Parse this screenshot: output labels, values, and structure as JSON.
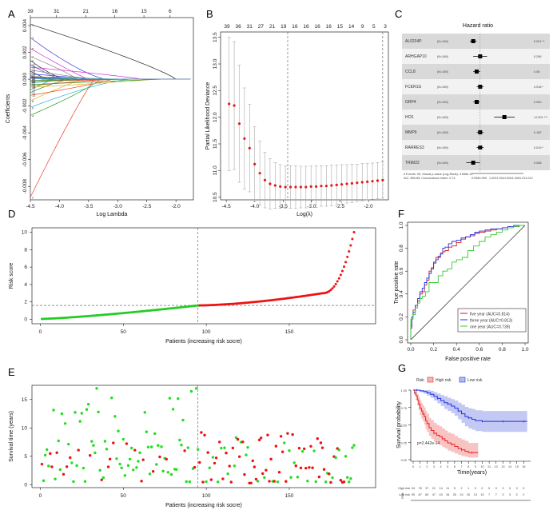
{
  "panel_letters": [
    "A",
    "B",
    "C",
    "D",
    "E",
    "F",
    "G"
  ],
  "chart_data": [
    {
      "panel": "A",
      "type": "line",
      "title": "",
      "xlabel": "Log Lambda",
      "ylabel": "Coefficients",
      "xlim": [
        -4.5,
        -1.7
      ],
      "ylim": [
        -0.009,
        0.0046
      ],
      "x_ticks": [
        "-4.5",
        "-4.0",
        "-3.5",
        "-3.0",
        "-2.5",
        "-2.0"
      ],
      "y_ticks": [
        "-0.008",
        "-0.006",
        "-0.004",
        "-0.002",
        "0.000",
        "0.002",
        "0.004"
      ],
      "top_ticks": [
        "39",
        "31",
        "21",
        "16",
        "15",
        "6"
      ],
      "series_colors": [
        "#222222",
        "#e8402a",
        "#3a3ad8",
        "#2aa02a",
        "#d42ad4",
        "#23b4c8",
        "#888888",
        "#e0b020"
      ]
    },
    {
      "panel": "B",
      "type": "scatter",
      "xlabel": "Log(λ)",
      "ylabel": "Partial Likelihood Deviance",
      "xlim": [
        -4.6,
        -1.65
      ],
      "ylim": [
        10.45,
        13.6
      ],
      "x_ticks": [
        "-4.5",
        "-4.0",
        "-3.5",
        "-3.0",
        "-2.5",
        "-2.0"
      ],
      "y_ticks": [
        "10.5",
        "11.0",
        "11.5",
        "12.0",
        "12.5",
        "13.0",
        "13.5"
      ],
      "top_ticks": [
        "39",
        "36",
        "31",
        "27",
        "21",
        "19",
        "16",
        "16",
        "16",
        "16",
        "15",
        "14",
        "9",
        "5",
        "3"
      ],
      "vlines": [
        -3.42,
        -1.75
      ],
      "points": [
        [
          -4.45,
          12.25,
          1.25
        ],
        [
          -4.36,
          12.22,
          1.2
        ],
        [
          -4.27,
          11.88,
          1.1
        ],
        [
          -4.18,
          11.6,
          0.95
        ],
        [
          -4.09,
          11.42,
          0.82
        ],
        [
          -4.0,
          11.12,
          0.7
        ],
        [
          -3.91,
          10.95,
          0.6
        ],
        [
          -3.82,
          10.82,
          0.52
        ],
        [
          -3.73,
          10.75,
          0.47
        ],
        [
          -3.64,
          10.72,
          0.43
        ],
        [
          -3.55,
          10.7,
          0.41
        ],
        [
          -3.46,
          10.69,
          0.4
        ],
        [
          -3.37,
          10.69,
          0.4
        ],
        [
          -3.28,
          10.69,
          0.4
        ],
        [
          -3.19,
          10.69,
          0.39
        ],
        [
          -3.1,
          10.69,
          0.39
        ],
        [
          -3.01,
          10.7,
          0.39
        ],
        [
          -2.92,
          10.7,
          0.39
        ],
        [
          -2.83,
          10.71,
          0.38
        ],
        [
          -2.74,
          10.71,
          0.38
        ],
        [
          -2.65,
          10.72,
          0.38
        ],
        [
          -2.56,
          10.73,
          0.37
        ],
        [
          -2.47,
          10.74,
          0.37
        ],
        [
          -2.38,
          10.75,
          0.36
        ],
        [
          -2.29,
          10.76,
          0.36
        ],
        [
          -2.2,
          10.77,
          0.35
        ],
        [
          -2.11,
          10.78,
          0.35
        ],
        [
          -2.02,
          10.79,
          0.34
        ],
        [
          -1.93,
          10.8,
          0.34
        ],
        [
          -1.84,
          10.81,
          0.34
        ],
        [
          -1.75,
          10.82,
          0.34
        ]
      ]
    },
    {
      "panel": "C",
      "type": "table",
      "title": "Hazard ratio",
      "genes": [
        {
          "name": "AL0234P",
          "n": "(N=189)",
          "hr": 0.998,
          "lo": 0.997,
          "hi": 0.999,
          "p": "0.001 **"
        },
        {
          "name": "ARHGAP10",
          "n": "(N=189)",
          "hr": 1.0,
          "lo": 0.998,
          "hi": 1.002,
          "p": "0.296"
        },
        {
          "name": "CCL8",
          "n": "(N=189)",
          "hr": 0.999,
          "lo": 0.998,
          "hi": 1.0,
          "p": "0.08"
        },
        {
          "name": "FCER1G",
          "n": "(N=189)",
          "hr": 1.0,
          "lo": 0.999,
          "hi": 1.001,
          "p": "0.018 *"
        },
        {
          "name": "GRP4",
          "n": "(N=189)",
          "hr": 0.999,
          "lo": 0.998,
          "hi": 1.0,
          "p": "0.052 ."
        },
        {
          "name": "HCK",
          "n": "(N=189)",
          "hr": 1.007,
          "lo": 1.004,
          "hi": 1.01,
          "p": "<0.001 ***"
        },
        {
          "name": "MMP9",
          "n": "(N=189)",
          "hr": 1.0,
          "lo": 0.999,
          "hi": 1.001,
          "p": "0.182"
        },
        {
          "name": "RARRES3",
          "n": "(N=189)",
          "hr": 1.0,
          "lo": 0.999,
          "hi": 1.001,
          "p": "0.019 *"
        },
        {
          "name": "TRIM22",
          "n": "(N=189)",
          "hr": 0.998,
          "lo": 0.996,
          "hi": 1.0,
          "p": "0.088"
        }
      ],
      "footer_line1": "# Events: 99; Global p-value (Log-Rank): 4.658e-11",
      "footer_line2": "AIC: 896.65; Concordance Index: 0.74",
      "axis_ticks": [
        "0.9980.999",
        "1.0021.0041.0061.0081.011.012"
      ],
      "xlim": [
        0.9975,
        1.0125
      ],
      "hr_ref": 1.0
    },
    {
      "panel": "D",
      "type": "scatter",
      "xlabel": "Patients (increasing risk socre)",
      "ylabel": "Risk score",
      "xlim": [
        -5,
        202
      ],
      "ylim": [
        -0.5,
        10.5
      ],
      "x_ticks": [
        "0",
        "50",
        "100",
        "150"
      ],
      "y_ticks": [
        "0",
        "2",
        "4",
        "6",
        "8",
        "10"
      ],
      "cutoff_index": 95,
      "cutoff_value": 1.6,
      "n_patients": 189,
      "low_color": "#22cc22",
      "high_color": "#ee1111"
    },
    {
      "panel": "E",
      "type": "scatter",
      "xlabel": "Patients (increasing risk socre)",
      "ylabel": "Survival time (years)",
      "xlim": [
        -5,
        202
      ],
      "ylim": [
        -0.5,
        17.5
      ],
      "x_ticks": [
        "0",
        "50",
        "100",
        "150"
      ],
      "y_ticks": [
        "0",
        "5",
        "10",
        "15"
      ],
      "cutoff_index": 95,
      "legend_note": "green = alive, red = dead"
    },
    {
      "panel": "F",
      "type": "line",
      "xlabel": "False positive rate",
      "ylabel": "True positive rate",
      "xlim": [
        0,
        1
      ],
      "ylim": [
        0,
        1
      ],
      "x_ticks": [
        "0.0",
        "0.2",
        "0.4",
        "0.6",
        "0.8",
        "1.0"
      ],
      "y_ticks": [
        "0.0",
        "0.2",
        "0.4",
        "0.6",
        "0.8",
        "1.0"
      ],
      "series": [
        {
          "name": "five year (AUC=0.814)",
          "color": "#d41a1a",
          "x": [
            0,
            0.01,
            0.02,
            0.04,
            0.06,
            0.08,
            0.1,
            0.12,
            0.14,
            0.16,
            0.18,
            0.2,
            0.22,
            0.24,
            0.26,
            0.28,
            0.3,
            0.33,
            0.36,
            0.4,
            0.44,
            0.48,
            0.52,
            0.56,
            0.6,
            0.65,
            0.7,
            0.75,
            0.8,
            0.85,
            0.9,
            0.95,
            1.0
          ],
          "y": [
            0,
            0.1,
            0.2,
            0.26,
            0.3,
            0.34,
            0.4,
            0.42,
            0.48,
            0.52,
            0.6,
            0.63,
            0.67,
            0.72,
            0.73,
            0.76,
            0.77,
            0.78,
            0.81,
            0.82,
            0.85,
            0.88,
            0.9,
            0.91,
            0.93,
            0.94,
            0.95,
            0.96,
            0.97,
            0.98,
            0.99,
            0.99,
            1.0
          ]
        },
        {
          "name": "three year (AUC=0.813)",
          "color": "#2233dd",
          "x": [
            0,
            0.01,
            0.02,
            0.04,
            0.06,
            0.08,
            0.1,
            0.12,
            0.14,
            0.16,
            0.18,
            0.2,
            0.22,
            0.24,
            0.26,
            0.28,
            0.3,
            0.33,
            0.36,
            0.4,
            0.44,
            0.48,
            0.52,
            0.56,
            0.6,
            0.65,
            0.7,
            0.75,
            0.8,
            0.85,
            0.9,
            0.95,
            1.0
          ],
          "y": [
            0,
            0.12,
            0.2,
            0.24,
            0.3,
            0.36,
            0.42,
            0.45,
            0.5,
            0.54,
            0.58,
            0.62,
            0.68,
            0.7,
            0.72,
            0.75,
            0.8,
            0.81,
            0.84,
            0.86,
            0.87,
            0.89,
            0.9,
            0.92,
            0.94,
            0.95,
            0.96,
            0.97,
            0.97,
            0.98,
            0.99,
            1.0,
            1.0
          ]
        },
        {
          "name": "one year (AUC=0.739)",
          "color": "#33cc33",
          "x": [
            0,
            0.02,
            0.04,
            0.06,
            0.08,
            0.1,
            0.13,
            0.16,
            0.2,
            0.24,
            0.28,
            0.32,
            0.36,
            0.4,
            0.45,
            0.5,
            0.55,
            0.6,
            0.65,
            0.7,
            0.75,
            0.8,
            0.85,
            0.9,
            0.95,
            1.0
          ],
          "y": [
            0,
            0.18,
            0.22,
            0.28,
            0.32,
            0.36,
            0.38,
            0.42,
            0.5,
            0.5,
            0.56,
            0.6,
            0.62,
            0.68,
            0.7,
            0.72,
            0.78,
            0.82,
            0.86,
            0.9,
            0.92,
            0.94,
            0.96,
            0.98,
            0.99,
            1.0
          ]
        }
      ]
    },
    {
      "panel": "G",
      "type": "line",
      "legend_title": "Risk",
      "legend_items": [
        "High risk",
        "Low risk"
      ],
      "xlabel": "Time(years)",
      "ylabel": "Survival probability",
      "xlim": [
        0,
        17
      ],
      "ylim": [
        0,
        1
      ],
      "x_ticks": [
        "0",
        "1",
        "2",
        "3",
        "4",
        "5",
        "6",
        "7",
        "8",
        "9",
        "10",
        "11",
        "12",
        "13",
        "14",
        "15",
        "16"
      ],
      "y_ticks": [
        "0.00",
        "0.25",
        "0.50",
        "0.75",
        "1.00"
      ],
      "pvalue": "p=2.442e-14",
      "series": [
        {
          "name": "High risk",
          "color": "#ee2222",
          "t": [
            0,
            0.2,
            0.4,
            0.6,
            0.8,
            1.0,
            1.2,
            1.4,
            1.6,
            1.8,
            2.0,
            2.3,
            2.6,
            3.0,
            3.4,
            3.8,
            4.2,
            4.6,
            5.0,
            5.5,
            6.0,
            6.5,
            7.0,
            7.5,
            8.0,
            8.5,
            9.0,
            9.4
          ],
          "s": [
            1.0,
            0.96,
            0.92,
            0.86,
            0.8,
            0.74,
            0.7,
            0.66,
            0.62,
            0.56,
            0.52,
            0.46,
            0.42,
            0.38,
            0.35,
            0.33,
            0.3,
            0.27,
            0.24,
            0.22,
            0.19,
            0.16,
            0.14,
            0.12,
            0.1,
            0.1,
            0.1,
            0.1
          ],
          "band_lo": [
            1.0,
            0.92,
            0.86,
            0.78,
            0.71,
            0.64,
            0.59,
            0.55,
            0.5,
            0.44,
            0.4,
            0.34,
            0.3,
            0.26,
            0.23,
            0.21,
            0.18,
            0.16,
            0.13,
            0.11,
            0.09,
            0.07,
            0.05,
            0.04,
            0.03,
            0.03,
            0.03,
            0.03
          ],
          "band_hi": [
            1.0,
            1.0,
            0.98,
            0.94,
            0.9,
            0.85,
            0.81,
            0.78,
            0.75,
            0.7,
            0.66,
            0.6,
            0.57,
            0.53,
            0.5,
            0.48,
            0.45,
            0.42,
            0.39,
            0.37,
            0.34,
            0.31,
            0.29,
            0.27,
            0.24,
            0.24,
            0.24,
            0.24
          ]
        },
        {
          "name": "Low risk",
          "color": "#2233dd",
          "t": [
            0,
            0.5,
            1.0,
            1.5,
            2.0,
            2.5,
            3.0,
            3.5,
            4.0,
            4.5,
            5.0,
            5.5,
            6.0,
            6.5,
            7.0,
            7.5,
            8.0,
            8.5,
            9.0,
            10.0,
            11.0,
            12.0,
            13.0,
            14.0,
            15.0,
            16.0,
            16.5
          ],
          "s": [
            1.0,
            1.0,
            0.99,
            0.98,
            0.96,
            0.94,
            0.91,
            0.88,
            0.85,
            0.82,
            0.8,
            0.77,
            0.74,
            0.7,
            0.66,
            0.62,
            0.6,
            0.58,
            0.56,
            0.55,
            0.55,
            0.55,
            0.55,
            0.55,
            0.55,
            0.55,
            0.55
          ],
          "band_lo": [
            1.0,
            0.99,
            0.97,
            0.95,
            0.92,
            0.89,
            0.85,
            0.81,
            0.77,
            0.73,
            0.7,
            0.67,
            0.63,
            0.58,
            0.53,
            0.48,
            0.45,
            0.43,
            0.41,
            0.4,
            0.4,
            0.4,
            0.4,
            0.4,
            0.4,
            0.4,
            0.4
          ],
          "band_hi": [
            1.0,
            1.0,
            1.0,
            1.0,
            1.0,
            0.99,
            0.97,
            0.95,
            0.93,
            0.91,
            0.89,
            0.87,
            0.85,
            0.82,
            0.79,
            0.76,
            0.74,
            0.73,
            0.71,
            0.7,
            0.7,
            0.7,
            0.7,
            0.7,
            0.7,
            0.7,
            0.7
          ]
        }
      ],
      "risk_table_label": "Risk",
      "risk_table": [
        {
          "name": "High risk",
          "counts": [
            "94",
            "78",
            "37",
            "21",
            "14",
            "11",
            "5",
            "2",
            "1",
            "0",
            "0",
            "0",
            "0",
            "0",
            "0",
            "0",
            "0"
          ]
        },
        {
          "name": "Low risk",
          "counts": [
            "95",
            "87",
            "60",
            "47",
            "43",
            "34",
            "25",
            "24",
            "20",
            "13",
            "10",
            "7",
            "7",
            "3",
            "3",
            "2",
            "2"
          ]
        }
      ]
    }
  ]
}
